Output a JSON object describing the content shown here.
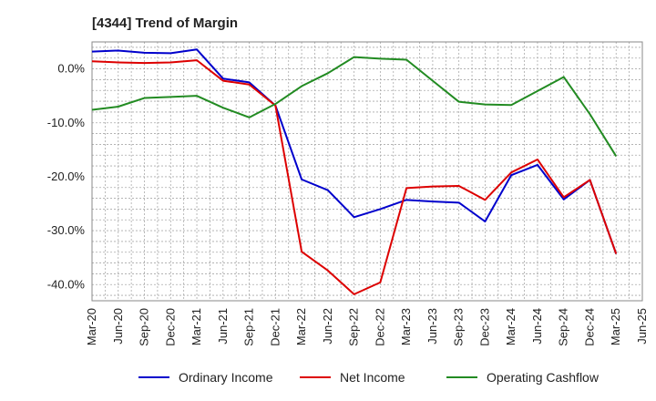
{
  "chart_data": {
    "type": "line",
    "title": "[4344]  Trend of Margin",
    "xlabel": "",
    "ylabel": "",
    "categories": [
      "Mar-20",
      "Jun-20",
      "Sep-20",
      "Dec-20",
      "Mar-21",
      "Jun-21",
      "Sep-21",
      "Dec-21",
      "Mar-22",
      "Jun-22",
      "Sep-22",
      "Dec-22",
      "Mar-23",
      "Jun-23",
      "Sep-23",
      "Dec-23",
      "Mar-24",
      "Jun-24",
      "Sep-24",
      "Dec-24",
      "Mar-25",
      "Jun-25"
    ],
    "ylim": [
      -43,
      5
    ],
    "yticks": [
      0,
      -10,
      -20,
      -30,
      -40
    ],
    "ytick_labels": [
      "0.0%",
      "-10.0%",
      "-20.0%",
      "-30.0%",
      "-40.0%"
    ],
    "grid": true,
    "legend_position": "bottom",
    "series": [
      {
        "name": "Ordinary Income",
        "color": "#0000cc",
        "values": [
          3.2,
          3.4,
          3.0,
          2.9,
          3.6,
          -1.8,
          -2.5,
          -6.8,
          -20.5,
          -22.5,
          -27.5,
          -26.0,
          -24.3,
          -24.6,
          -24.8,
          -28.3,
          -19.7,
          -17.8,
          -24.2,
          -20.6,
          -34.3,
          null
        ]
      },
      {
        "name": "Net Income",
        "color": "#dd0000",
        "values": [
          1.4,
          1.2,
          1.1,
          1.2,
          1.6,
          -2.2,
          -2.9,
          -6.8,
          -33.9,
          -37.4,
          -41.8,
          -39.6,
          -22.1,
          -21.8,
          -21.7,
          -24.3,
          -19.2,
          -16.8,
          -23.8,
          -20.6,
          -34.3,
          null
        ]
      },
      {
        "name": "Operating Cashflow",
        "color": "#228b22",
        "values": [
          -7.6,
          -7.0,
          -5.4,
          -5.2,
          -5.0,
          -7.2,
          -9.0,
          -6.5,
          -3.2,
          -0.8,
          2.2,
          1.9,
          1.7,
          -2.2,
          -6.1,
          -6.6,
          -6.7,
          -4.1,
          -1.5,
          -8.4,
          -16.2,
          null
        ]
      }
    ]
  }
}
